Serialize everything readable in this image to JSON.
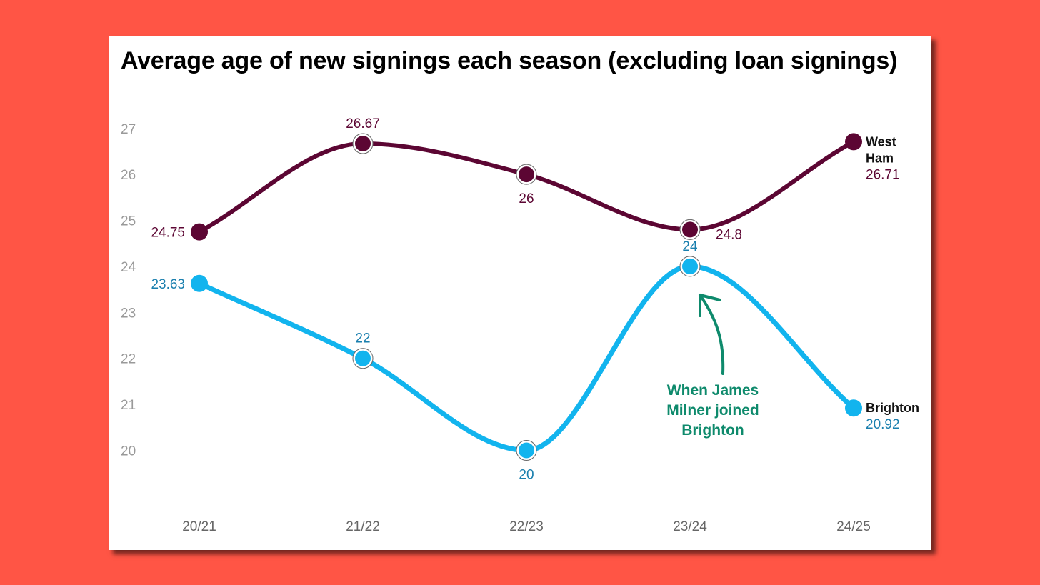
{
  "colors": {
    "background": "#ff5545",
    "west_ham": "#5c0633",
    "brighton_line": "#12b4ee",
    "brighton_text": "#1a7fae",
    "annotation": "#0e8a6c"
  },
  "chart_data": {
    "type": "line",
    "title": "Average age of new signings each season (excluding loan signings)",
    "xlabel": "",
    "ylabel": "",
    "categories": [
      "20/21",
      "21/22",
      "22/23",
      "23/24",
      "24/25"
    ],
    "y_ticks": [
      "20",
      "21",
      "22",
      "23",
      "24",
      "25",
      "26",
      "27"
    ],
    "ylim": [
      19.2,
      27.4
    ],
    "grid": false,
    "legend": "end-of-line labels",
    "series": [
      {
        "name": "West Ham",
        "name_lines": [
          "West",
          "Ham"
        ],
        "values": [
          24.75,
          26.67,
          26,
          24.8,
          26.71
        ],
        "labels": [
          "24.75",
          "26.67",
          "26",
          "24.8",
          "26.71"
        ]
      },
      {
        "name": "Brighton",
        "name_lines": [
          "Brighton"
        ],
        "values": [
          23.63,
          22,
          20,
          24,
          20.92
        ],
        "labels": [
          "23.63",
          "22",
          "20",
          "24",
          "20.92"
        ]
      }
    ],
    "annotations": [
      {
        "lines": [
          "When James",
          "Milner joined",
          "Brighton"
        ],
        "points_to": {
          "series": "Brighton",
          "category": "23/24"
        }
      }
    ]
  }
}
